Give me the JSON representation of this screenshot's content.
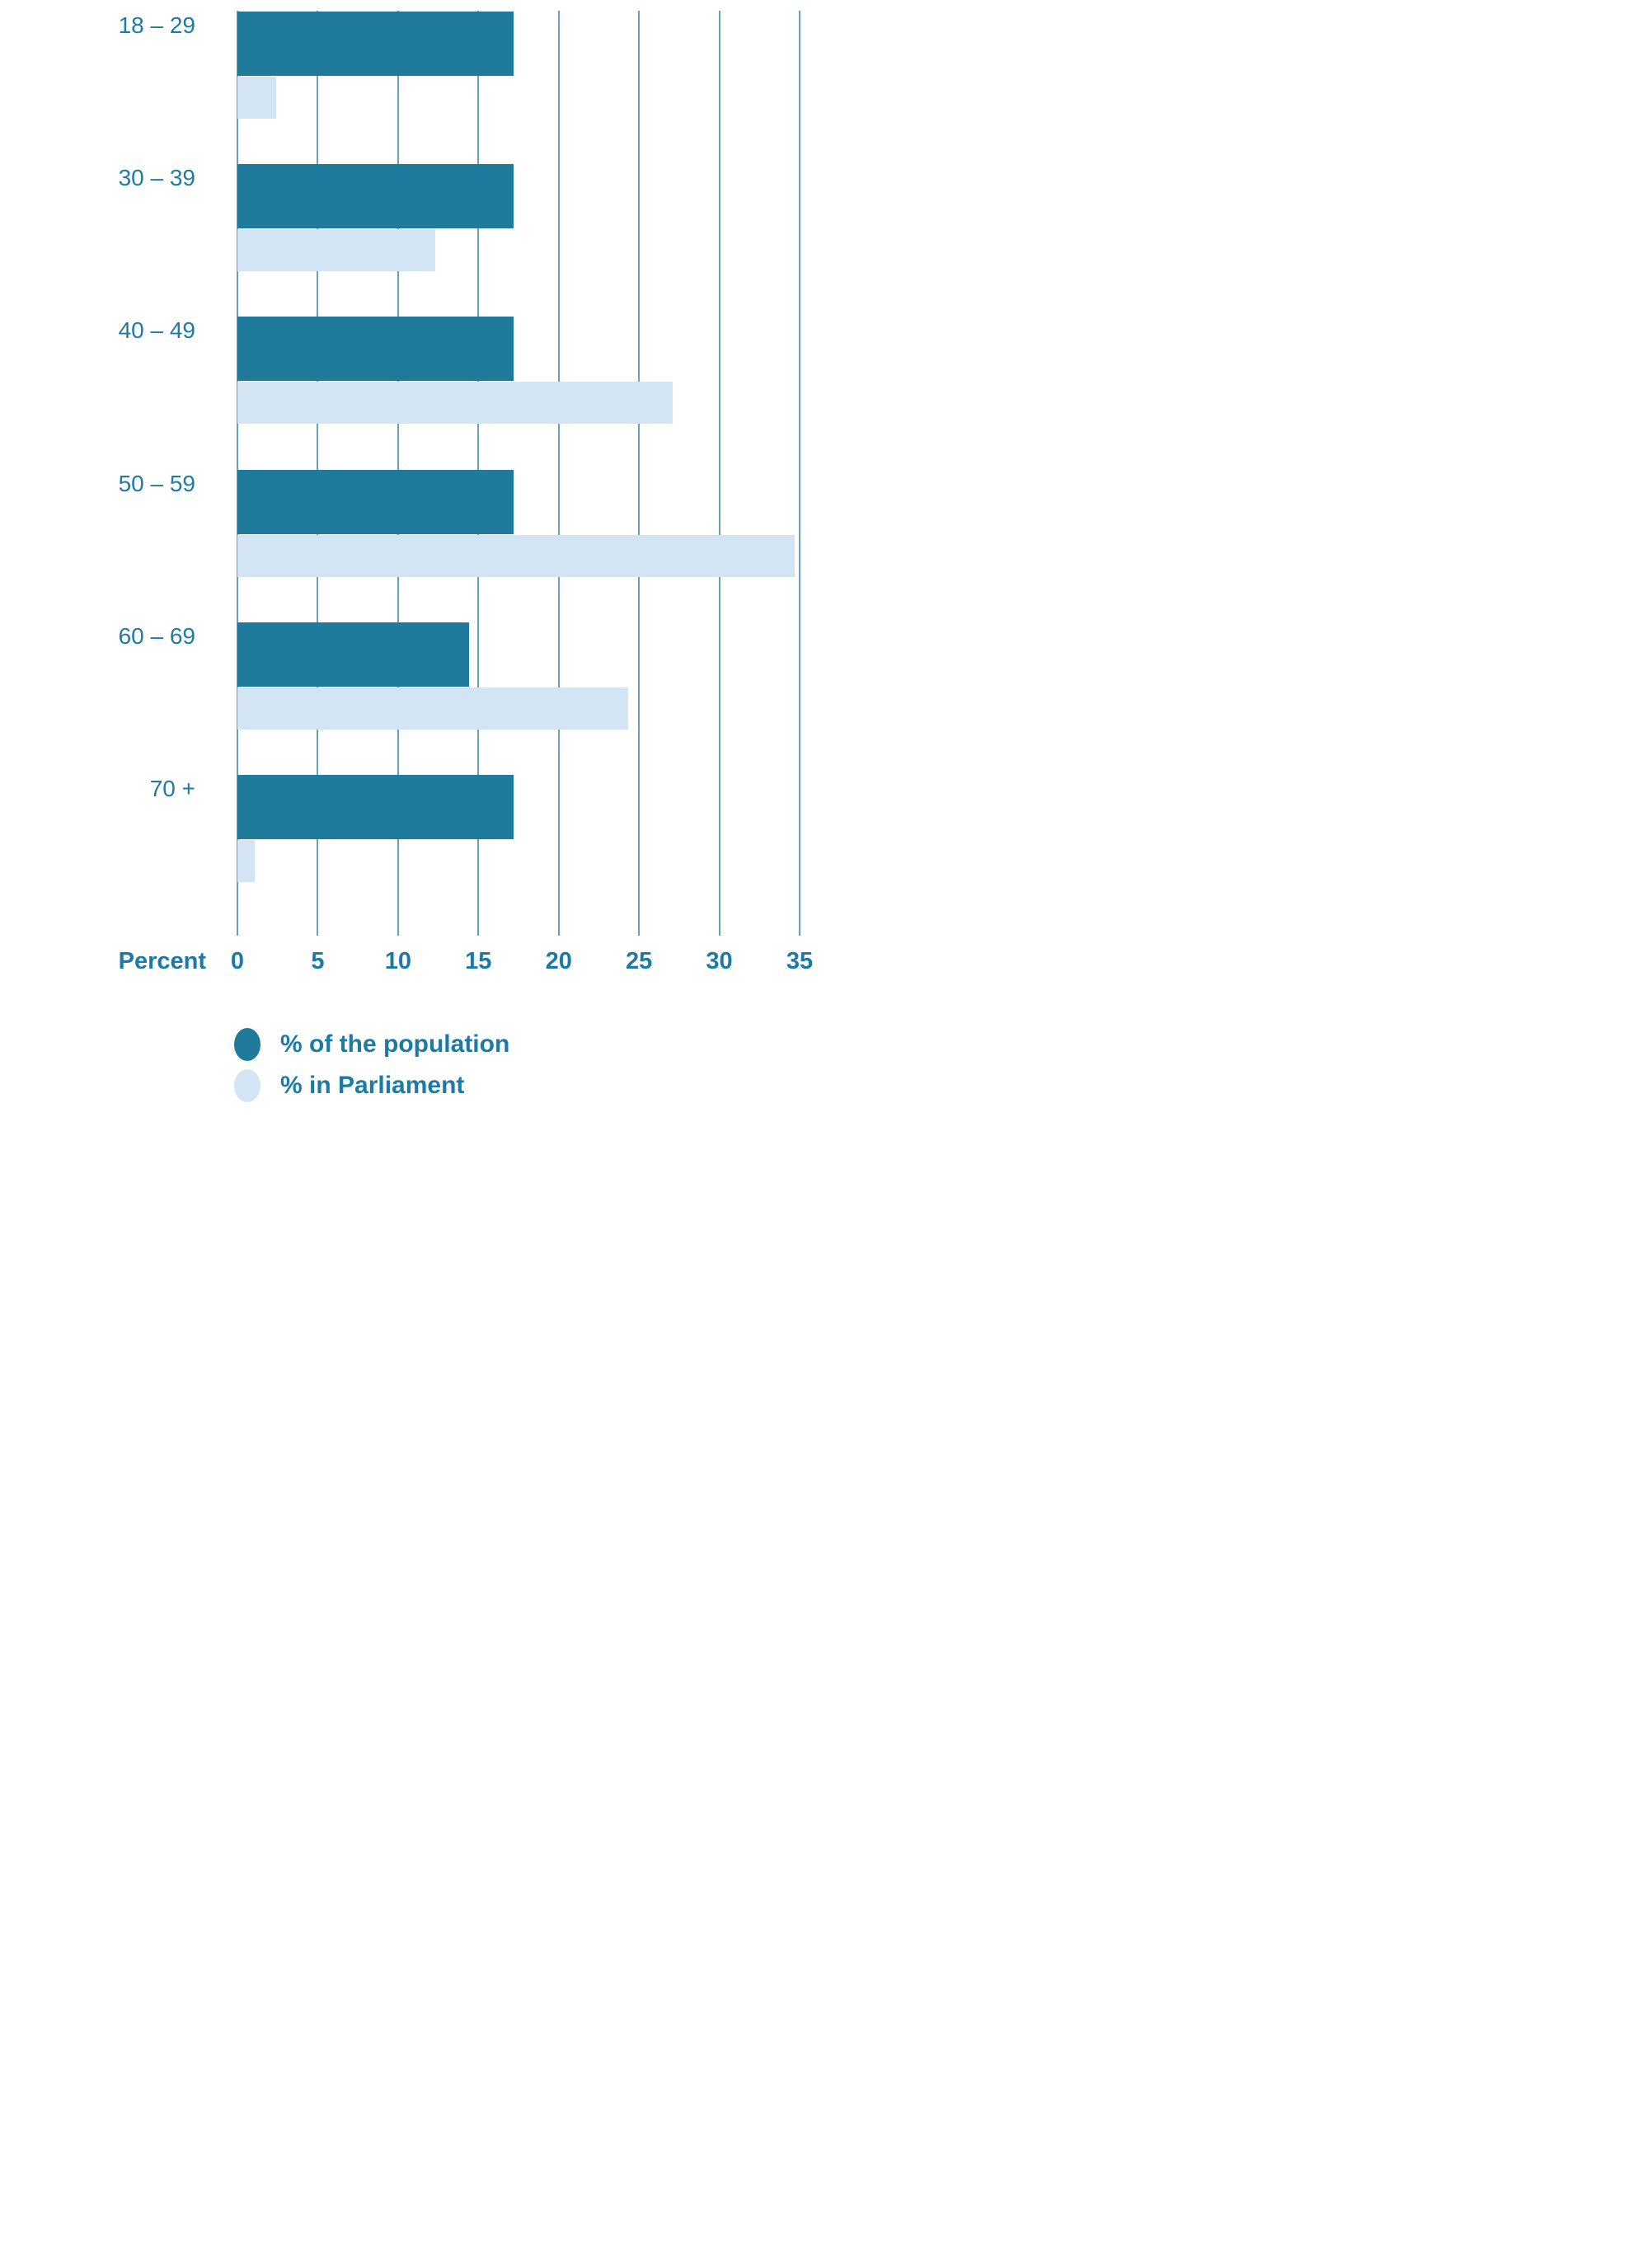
{
  "chart_data": {
    "type": "bar",
    "orientation": "horizontal",
    "title": "",
    "xlabel": "Percent",
    "categories": [
      "18 – 29",
      "30 – 39",
      "40 – 49",
      "50 – 59",
      "60 – 69",
      "70 +"
    ],
    "series": [
      {
        "name": "% of the population",
        "color": "#1f7a9b",
        "values": [
          17.2,
          17.2,
          17.2,
          17.2,
          14.4,
          17.2
        ]
      },
      {
        "name": "% in Parliament",
        "color": "#d3e4f4",
        "values": [
          2.4,
          12.3,
          27.1,
          34.7,
          24.3,
          1.1
        ]
      }
    ],
    "x_ticks": [
      0,
      5,
      10,
      15,
      20,
      25,
      30,
      35
    ],
    "xlim": [
      0,
      35
    ],
    "grid": true,
    "gridline_color": "#4a90b2",
    "legend_position": "bottom",
    "text_color": "#1b7aa6"
  },
  "axis": {
    "label": "Percent"
  },
  "legend": {
    "items": [
      {
        "label": "% of the population",
        "color": "#1f7a9b"
      },
      {
        "label": "% in Parliament",
        "color": "#d3e4f4"
      }
    ]
  }
}
